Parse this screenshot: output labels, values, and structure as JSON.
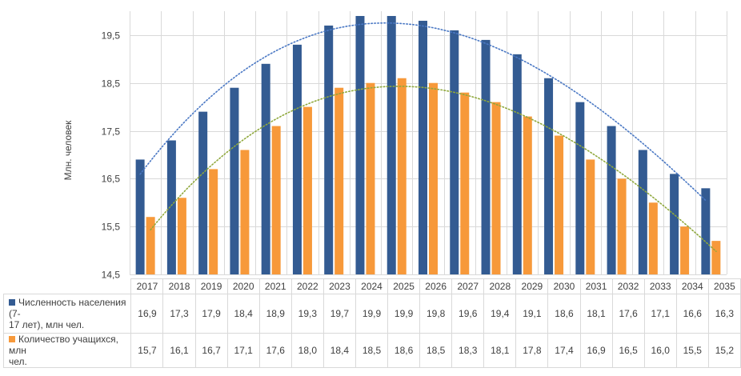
{
  "chart_data": {
    "type": "bar",
    "ylabel": "Млн. человек",
    "ylim": [
      14.5,
      20.0
    ],
    "yticks": [
      "14,5",
      "15,5",
      "16,5",
      "17,5",
      "18,5",
      "19,5"
    ],
    "ytick_values": [
      14.5,
      15.5,
      16.5,
      17.5,
      18.5,
      19.5
    ],
    "grid": true,
    "legend": "data-table-bottom",
    "categories": [
      "2017",
      "2018",
      "2019",
      "2020",
      "2021",
      "2022",
      "2023",
      "2024",
      "2025",
      "2026",
      "2027",
      "2028",
      "2029",
      "2030",
      "2031",
      "2032",
      "2033",
      "2034",
      "2035"
    ],
    "series": [
      {
        "name": "Численность населения (7-17 лет), млн чел.",
        "name_lines": [
          "Численность населения (7-",
          "17 лет), млн чел."
        ],
        "color": "#335B92",
        "trendline_color": "#4A78C4",
        "values": [
          16.9,
          17.3,
          17.9,
          18.4,
          18.9,
          19.3,
          19.7,
          19.9,
          19.9,
          19.8,
          19.6,
          19.4,
          19.1,
          18.6,
          18.1,
          17.6,
          17.1,
          16.6,
          16.3
        ],
        "labels": [
          "16,9",
          "17,3",
          "17,9",
          "18,4",
          "18,9",
          "19,3",
          "19,7",
          "19,9",
          "19,9",
          "19,8",
          "19,6",
          "19,4",
          "19,1",
          "18,6",
          "18,1",
          "17,6",
          "17,1",
          "16,6",
          "16,3"
        ]
      },
      {
        "name": "Количество учащихся, млн чел.",
        "name_lines": [
          "Количество учащихся, млн",
          "чел."
        ],
        "color": "#F7993A",
        "trendline_color": "#8FA83C",
        "values": [
          15.7,
          16.1,
          16.7,
          17.1,
          17.6,
          18.0,
          18.4,
          18.5,
          18.6,
          18.5,
          18.3,
          18.1,
          17.8,
          17.4,
          16.9,
          16.5,
          16.0,
          15.5,
          15.2
        ],
        "labels": [
          "15,7",
          "16,1",
          "16,7",
          "17,1",
          "17,6",
          "18,0",
          "18,4",
          "18,5",
          "18,6",
          "18,5",
          "18,3",
          "18,1",
          "17,8",
          "17,4",
          "16,9",
          "16,5",
          "16,0",
          "15,5",
          "15,2"
        ]
      }
    ]
  }
}
